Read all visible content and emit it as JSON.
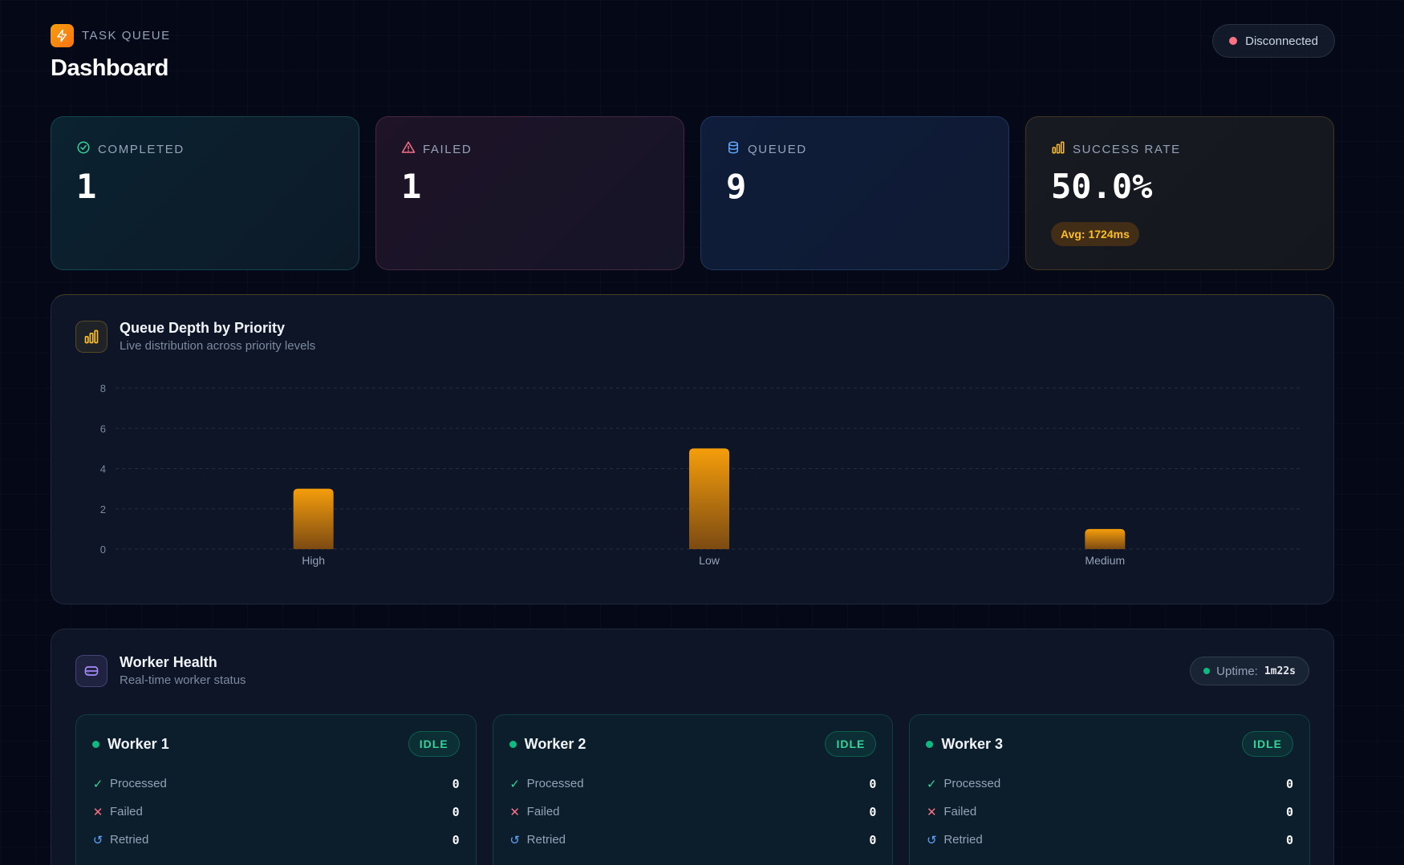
{
  "header": {
    "brand": "TASK QUEUE",
    "title": "Dashboard",
    "connection_status": "Disconnected",
    "connection_color": "#fb7185"
  },
  "stats": [
    {
      "id": "completed",
      "label": "COMPLETED",
      "value": "1",
      "icon": "check-circle-icon",
      "color": "#34d399"
    },
    {
      "id": "failed",
      "label": "FAILED",
      "value": "1",
      "icon": "warning-triangle-icon",
      "color": "#fb7185"
    },
    {
      "id": "queued",
      "label": "QUEUED",
      "value": "9",
      "icon": "database-icon",
      "color": "#60a5fa"
    },
    {
      "id": "rate",
      "label": "SUCCESS RATE",
      "value": "50.0%",
      "icon": "bar-chart-icon",
      "color": "#fbbf24",
      "badge": "Avg: 1724ms"
    }
  ],
  "queue_panel": {
    "title": "Queue Depth by Priority",
    "subtitle": "Live distribution across priority levels",
    "icon": "bar-chart-icon"
  },
  "chart_data": {
    "type": "bar",
    "categories": [
      "High",
      "Low",
      "Medium"
    ],
    "values": [
      3,
      5,
      1
    ],
    "ylim": [
      0,
      8
    ],
    "yticks": [
      0,
      2,
      4,
      6,
      8
    ],
    "grid": true,
    "bar_color": "#f59e0b"
  },
  "workers_panel": {
    "title": "Worker Health",
    "subtitle": "Real-time worker status",
    "icon": "server-icon",
    "uptime_label": "Uptime:",
    "uptime_value": "1m22s"
  },
  "workers": [
    {
      "name": "Worker 1",
      "status": "IDLE",
      "rows": [
        {
          "label": "Processed",
          "value": "0"
        },
        {
          "label": "Failed",
          "value": "0"
        },
        {
          "label": "Retried",
          "value": "0"
        }
      ]
    },
    {
      "name": "Worker 2",
      "status": "IDLE",
      "rows": [
        {
          "label": "Processed",
          "value": "0"
        },
        {
          "label": "Failed",
          "value": "0"
        },
        {
          "label": "Retried",
          "value": "0"
        }
      ]
    },
    {
      "name": "Worker 3",
      "status": "IDLE",
      "rows": [
        {
          "label": "Processed",
          "value": "0"
        },
        {
          "label": "Failed",
          "value": "0"
        },
        {
          "label": "Retried",
          "value": "0"
        }
      ]
    }
  ]
}
